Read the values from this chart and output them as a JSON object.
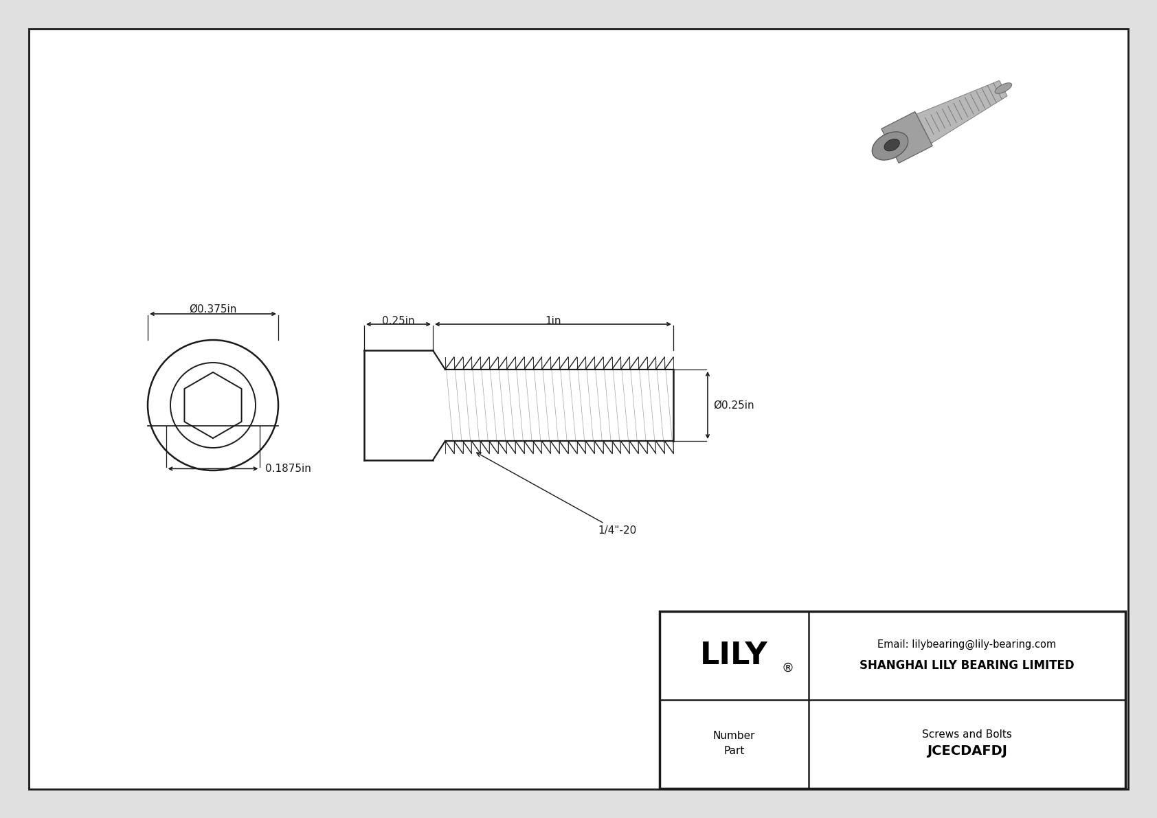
{
  "bg_color": "#ffffff",
  "outer_bg": "#e0e0e0",
  "border_color": "#1a1a1a",
  "line_color": "#1a1a1a",
  "dim_color": "#1a1a1a",
  "part_number": "JCECDAFDJ",
  "part_category": "Screws and Bolts",
  "company_name": "SHANGHAI LILY BEARING LIMITED",
  "company_email": "Email: lilybearing@lily-bearing.com",
  "company_logo": "LILY",
  "dim_head_diameter": "Ø0.375in",
  "dim_head_height": "0.1875in",
  "dim_shaft_length": "1in",
  "dim_head_length": "0.25in",
  "dim_shaft_diameter": "Ø0.25in",
  "dim_thread": "1/4\"-20"
}
